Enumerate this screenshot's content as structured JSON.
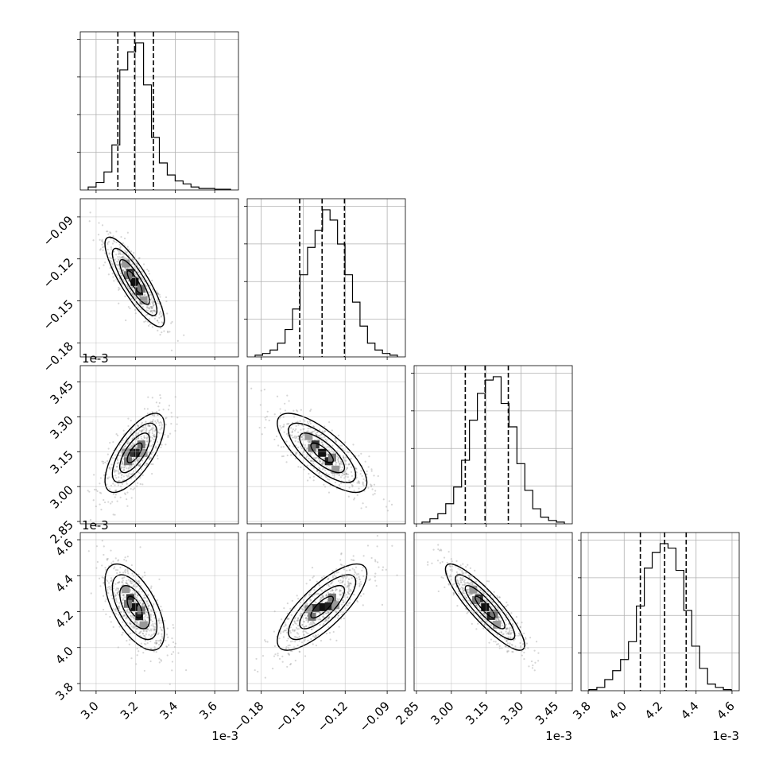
{
  "chart_data": {
    "type": "corner",
    "parameters": [
      {
        "id": "p0",
        "range": [
          2.92,
          3.72
        ],
        "ticks": [
          3.0,
          3.2,
          3.4,
          3.6
        ],
        "tick_labels": [
          "3.0",
          "3.2",
          "3.4",
          "3.6"
        ],
        "offset_label": "1e-3",
        "quantiles": [
          3.11,
          3.195,
          3.29
        ],
        "hist_counts": [
          2,
          5,
          12,
          30,
          80,
          92,
          98,
          70,
          35,
          18,
          10,
          6,
          4,
          2,
          1,
          1,
          0.5,
          0.5
        ]
      },
      {
        "id": "p1",
        "range": [
          -0.19,
          -0.077
        ],
        "ticks": [
          -0.18,
          -0.15,
          -0.12,
          -0.09
        ],
        "tick_labels": [
          "−0.18",
          "−0.15",
          "−0.12",
          "−0.09"
        ],
        "offset_label": "",
        "quantiles": [
          -0.1525,
          -0.1365,
          -0.1205
        ],
        "hist_counts": [
          1,
          2,
          4,
          8,
          16,
          28,
          48,
          64,
          74,
          86,
          80,
          66,
          48,
          32,
          18,
          8,
          4,
          2,
          1
        ]
      },
      {
        "id": "p2",
        "range": [
          2.84,
          3.52
        ],
        "ticks": [
          2.85,
          3.0,
          3.15,
          3.3,
          3.45
        ],
        "tick_labels": [
          "2.85",
          "3.00",
          "3.15",
          "3.30",
          "3.45"
        ],
        "offset_label": "1e-3",
        "quantiles": [
          3.06,
          3.145,
          3.245
        ],
        "hist_counts": [
          1,
          3,
          6,
          12,
          22,
          38,
          62,
          78,
          86,
          88,
          72,
          58,
          36,
          20,
          9,
          4,
          2,
          1
        ]
      },
      {
        "id": "p3",
        "range": [
          3.76,
          4.64
        ],
        "ticks": [
          3.8,
          4.0,
          4.2,
          4.4,
          4.6
        ],
        "tick_labels": [
          "3.8",
          "4.0",
          "4.2",
          "4.4",
          "4.6"
        ],
        "offset_label": "1e-3",
        "quantiles": [
          4.09,
          4.225,
          4.345
        ],
        "hist_counts": [
          0.5,
          1.5,
          5,
          9,
          14,
          22,
          38,
          55,
          62,
          66,
          64,
          54,
          36,
          20,
          10,
          3,
          1.5,
          0.5
        ]
      }
    ],
    "pairs": [
      {
        "x": 0,
        "y": 1,
        "mean": [
          3.195,
          -0.1365
        ],
        "sd": [
          0.075,
          0.016
        ],
        "rho": -0.85
      },
      {
        "x": 0,
        "y": 2,
        "mean": [
          3.195,
          3.145
        ],
        "sd": [
          0.075,
          0.085
        ],
        "rho": 0.7
      },
      {
        "x": 1,
        "y": 2,
        "mean": [
          -0.1365,
          3.145
        ],
        "sd": [
          0.016,
          0.085
        ],
        "rho": -0.75
      },
      {
        "x": 0,
        "y": 3,
        "mean": [
          3.195,
          4.225
        ],
        "sd": [
          0.075,
          0.12
        ],
        "rho": -0.6
      },
      {
        "x": 1,
        "y": 3,
        "mean": [
          -0.1365,
          4.225
        ],
        "sd": [
          0.016,
          0.12
        ],
        "rho": 0.78
      },
      {
        "x": 2,
        "y": 3,
        "mean": [
          3.145,
          4.225
        ],
        "sd": [
          0.085,
          0.12
        ],
        "rho": -0.88
      }
    ],
    "grid": true,
    "contour_levels_sigma": [
      0.5,
      1.0,
      1.5,
      2.0
    ]
  }
}
